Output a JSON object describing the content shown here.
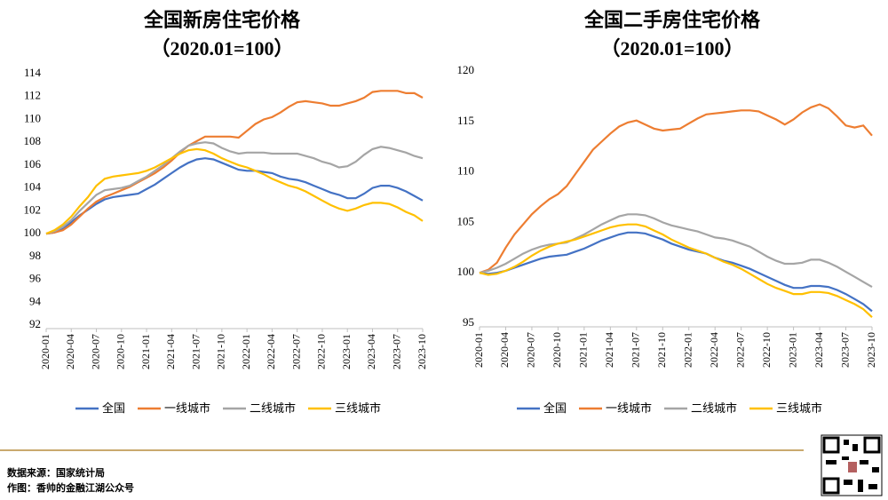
{
  "chart_data": [
    {
      "type": "line",
      "title": "全国新房住宅价格",
      "subtitle": "（2020.01=100）",
      "categories": [
        "2020-01",
        null,
        null,
        "2020-04",
        null,
        null,
        "2020-07",
        null,
        null,
        "2020-10",
        null,
        null,
        "2021-01",
        null,
        null,
        "2021-04",
        null,
        null,
        "2021-07",
        null,
        null,
        "2021-10",
        null,
        null,
        "2022-01",
        null,
        null,
        "2022-04",
        null,
        null,
        "2022-07",
        null,
        null,
        "2022-10",
        null,
        null,
        "2023-01",
        null,
        null,
        "2023-04",
        null,
        null,
        "2023-07",
        null,
        null,
        "2023-10"
      ],
      "ylim": [
        92,
        114
      ],
      "yticks": [
        92,
        94,
        96,
        98,
        100,
        102,
        104,
        106,
        108,
        110,
        112,
        114
      ],
      "series": [
        {
          "name": "全国",
          "color": "#4472c4",
          "values": [
            100,
            100.1,
            100.4,
            101.0,
            101.6,
            102.1,
            102.6,
            103.0,
            103.2,
            103.3,
            103.4,
            103.5,
            103.9,
            104.3,
            104.8,
            105.3,
            105.8,
            106.2,
            106.5,
            106.6,
            106.5,
            106.2,
            105.9,
            105.6,
            105.5,
            105.5,
            105.4,
            105.3,
            105.0,
            104.8,
            104.7,
            104.5,
            104.2,
            103.9,
            103.6,
            103.4,
            103.1,
            103.1,
            103.5,
            104.0,
            104.2,
            104.2,
            104.0,
            103.7,
            103.3,
            102.9
          ]
        },
        {
          "name": "一线城市",
          "color": "#ed7d31",
          "values": [
            100,
            100.1,
            100.3,
            100.8,
            101.5,
            102.2,
            102.8,
            103.2,
            103.5,
            103.8,
            104.1,
            104.5,
            104.9,
            105.3,
            105.8,
            106.4,
            107.1,
            107.7,
            108.1,
            108.5,
            108.5,
            108.5,
            108.5,
            108.4,
            109.0,
            109.6,
            110.0,
            110.2,
            110.6,
            111.1,
            111.5,
            111.6,
            111.5,
            111.4,
            111.2,
            111.2,
            111.4,
            111.6,
            111.9,
            112.4,
            112.5,
            112.5,
            112.5,
            112.3,
            112.3,
            111.9
          ]
        },
        {
          "name": "二线城市",
          "color": "#a5a5a5",
          "values": [
            100,
            100.2,
            100.6,
            101.2,
            102.0,
            102.7,
            103.4,
            103.8,
            103.9,
            104.0,
            104.2,
            104.6,
            105.0,
            105.5,
            106.0,
            106.6,
            107.2,
            107.7,
            107.9,
            108.0,
            107.9,
            107.5,
            107.2,
            107.0,
            107.1,
            107.1,
            107.1,
            107.0,
            107.0,
            107.0,
            107.0,
            106.8,
            106.6,
            106.3,
            106.1,
            105.8,
            105.9,
            106.3,
            106.9,
            107.4,
            107.6,
            107.5,
            107.3,
            107.1,
            106.8,
            106.6
          ]
        },
        {
          "name": "三线城市",
          "color": "#ffc000",
          "values": [
            100,
            100.3,
            100.8,
            101.5,
            102.4,
            103.2,
            104.2,
            104.8,
            105.0,
            105.1,
            105.2,
            105.3,
            105.5,
            105.8,
            106.2,
            106.6,
            107.0,
            107.3,
            107.4,
            107.3,
            107.0,
            106.6,
            106.3,
            106.0,
            105.8,
            105.5,
            105.2,
            104.8,
            104.5,
            104.2,
            104.0,
            103.7,
            103.3,
            102.9,
            102.5,
            102.2,
            102.0,
            102.2,
            102.5,
            102.7,
            102.7,
            102.6,
            102.3,
            101.9,
            101.6,
            101.1
          ]
        }
      ]
    },
    {
      "type": "line",
      "title": "全国二手房住宅价格",
      "subtitle": "（2020.01=100）",
      "categories": [
        "2020-01",
        null,
        null,
        "2020-04",
        null,
        null,
        "2020-07",
        null,
        null,
        "2020-10",
        null,
        null,
        "2021-01",
        null,
        null,
        "2021-04",
        null,
        null,
        "2021-07",
        null,
        null,
        "2021-10",
        null,
        null,
        "2022-01",
        null,
        null,
        "2022-04",
        null,
        null,
        "2022-07",
        null,
        null,
        "2022-10",
        null,
        null,
        "2023-01",
        null,
        null,
        "2023-04",
        null,
        null,
        "2023-07",
        null,
        null,
        "2023-10"
      ],
      "ylim": [
        95,
        120
      ],
      "yticks": [
        95,
        100,
        105,
        110,
        115,
        120
      ],
      "series": [
        {
          "name": "全国",
          "color": "#4472c4",
          "values": [
            100,
            99.9,
            100.0,
            100.2,
            100.5,
            100.8,
            101.1,
            101.4,
            101.6,
            101.7,
            101.8,
            102.1,
            102.4,
            102.8,
            103.2,
            103.5,
            103.8,
            104.0,
            104.0,
            103.9,
            103.6,
            103.3,
            102.9,
            102.6,
            102.3,
            102.1,
            101.9,
            101.5,
            101.2,
            101.0,
            100.7,
            100.4,
            100.0,
            99.6,
            99.2,
            98.8,
            98.5,
            98.5,
            98.7,
            98.7,
            98.6,
            98.3,
            97.9,
            97.4,
            96.9,
            96.2
          ]
        },
        {
          "name": "一线城市",
          "color": "#ed7d31",
          "values": [
            100,
            100.3,
            101.0,
            102.5,
            103.8,
            104.8,
            105.8,
            106.6,
            107.3,
            107.8,
            108.6,
            109.8,
            111.0,
            112.2,
            113.0,
            113.8,
            114.5,
            114.9,
            115.1,
            114.7,
            114.3,
            114.1,
            114.2,
            114.3,
            114.8,
            115.3,
            115.7,
            115.8,
            115.9,
            116.0,
            116.1,
            116.1,
            116.0,
            115.6,
            115.2,
            114.7,
            115.2,
            115.9,
            116.4,
            116.7,
            116.3,
            115.5,
            114.6,
            114.4,
            114.6,
            113.6
          ]
        },
        {
          "name": "二线城市",
          "color": "#a5a5a5",
          "values": [
            100,
            100.2,
            100.5,
            100.9,
            101.4,
            101.9,
            102.3,
            102.6,
            102.8,
            102.9,
            103.0,
            103.4,
            103.8,
            104.3,
            104.8,
            105.2,
            105.6,
            105.8,
            105.8,
            105.7,
            105.4,
            105.0,
            104.7,
            104.5,
            104.3,
            104.1,
            103.8,
            103.5,
            103.4,
            103.2,
            102.9,
            102.6,
            102.1,
            101.6,
            101.2,
            100.9,
            100.9,
            101.0,
            101.3,
            101.3,
            101.0,
            100.6,
            100.1,
            99.6,
            99.1,
            98.6
          ]
        },
        {
          "name": "三线城市",
          "color": "#ffc000",
          "values": [
            100,
            99.8,
            99.9,
            100.2,
            100.6,
            101.1,
            101.7,
            102.2,
            102.6,
            102.9,
            103.1,
            103.3,
            103.6,
            103.9,
            104.2,
            104.5,
            104.7,
            104.8,
            104.8,
            104.6,
            104.2,
            103.8,
            103.3,
            102.9,
            102.5,
            102.2,
            101.9,
            101.5,
            101.1,
            100.8,
            100.4,
            99.9,
            99.4,
            98.9,
            98.5,
            98.2,
            97.9,
            97.9,
            98.1,
            98.1,
            98.0,
            97.7,
            97.3,
            96.9,
            96.4,
            95.6
          ]
        }
      ]
    }
  ],
  "footer": {
    "source": "数据来源：国家统计局",
    "credit": "作图：香帅的金融江湖公众号"
  }
}
